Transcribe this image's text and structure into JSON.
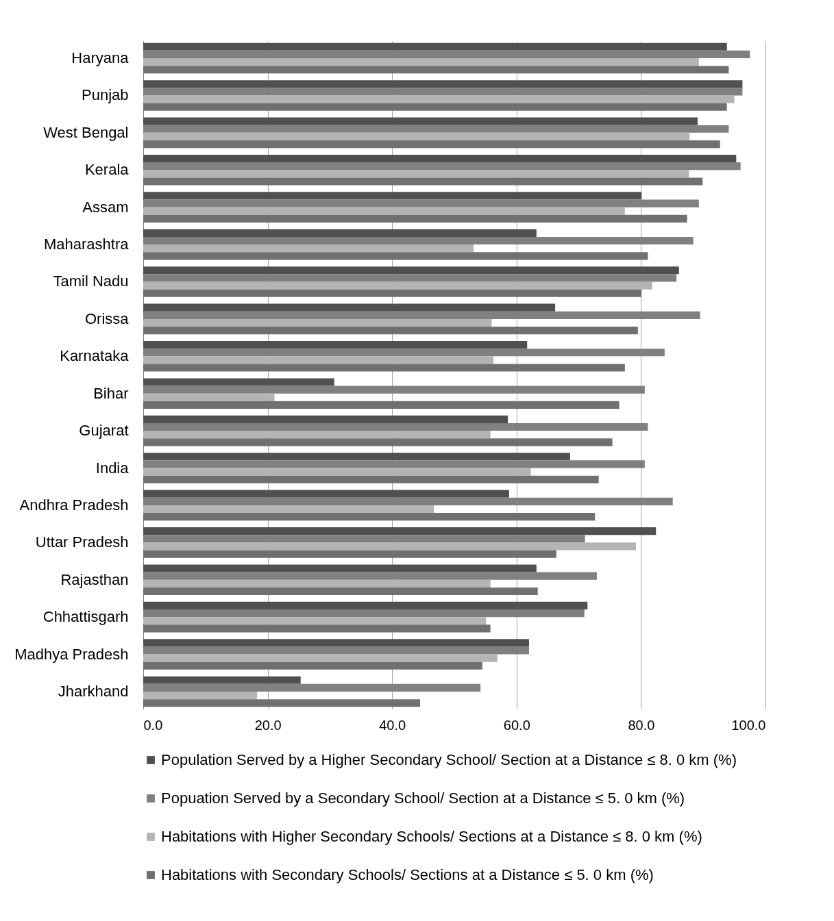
{
  "chart_data": {
    "type": "bar",
    "orientation": "horizontal",
    "categories": [
      "Haryana",
      "Punjab",
      "West Bengal",
      "Kerala",
      "Assam",
      "Maharashtra",
      "Tamil Nadu",
      "Orissa",
      "Karnataka",
      "Bihar",
      "Gujarat",
      "India",
      "Andhra Pradesh",
      "Uttar Pradesh",
      "Rajasthan",
      "Chhattisgarh",
      "Madhya Pradesh",
      "Jharkhand"
    ],
    "series": [
      {
        "name": "Population Served by a Higher Secondary School/ Section at a Distance ≤ 8. 0 km (%)",
        "color": "#505050",
        "values": [
          93.8,
          96.3,
          89.1,
          95.3,
          80.1,
          63.2,
          86.1,
          66.2,
          61.7,
          30.7,
          58.6,
          68.6,
          58.8,
          82.4,
          63.2,
          71.4,
          62.0,
          25.3
        ]
      },
      {
        "name": "Popuation Served by a Secondary School/ Section at a Distance ≤ 5. 0 km (%)",
        "color": "#808080",
        "values": [
          97.5,
          96.3,
          94.1,
          96.0,
          89.3,
          88.4,
          85.7,
          89.5,
          83.8,
          80.6,
          81.1,
          80.6,
          85.1,
          71.0,
          72.9,
          70.9,
          62.0,
          54.2
        ]
      },
      {
        "name": "Habitations with Higher Secondary Schools/ Sections at a Distance ≤ 8. 0 km (%)",
        "color": "#b4b4b4",
        "values": [
          89.3,
          95.0,
          87.8,
          87.7,
          77.4,
          53.1,
          81.8,
          56.0,
          56.3,
          21.1,
          55.8,
          62.3,
          46.7,
          79.2,
          55.8,
          55.1,
          56.9,
          18.3
        ]
      },
      {
        "name": "Habitations with Secondary Schools/ Sections at a Distance ≤ 5. 0 km (%)",
        "color": "#707070",
        "values": [
          94.1,
          93.8,
          92.7,
          89.9,
          87.4,
          81.1,
          80.1,
          79.5,
          77.4,
          76.5,
          75.4,
          73.2,
          72.6,
          66.4,
          63.4,
          55.8,
          54.5,
          44.5
        ]
      }
    ],
    "xlim": [
      0,
      100
    ],
    "xticks": [
      {
        "value": 0,
        "label": "0.0"
      },
      {
        "value": 20,
        "label": "20.0"
      },
      {
        "value": 40,
        "label": "40.0"
      },
      {
        "value": 60,
        "label": "60.0"
      },
      {
        "value": 80,
        "label": "80.0"
      },
      {
        "value": 100,
        "label": "100.0"
      }
    ],
    "grid": "x",
    "legend": "bottom"
  }
}
